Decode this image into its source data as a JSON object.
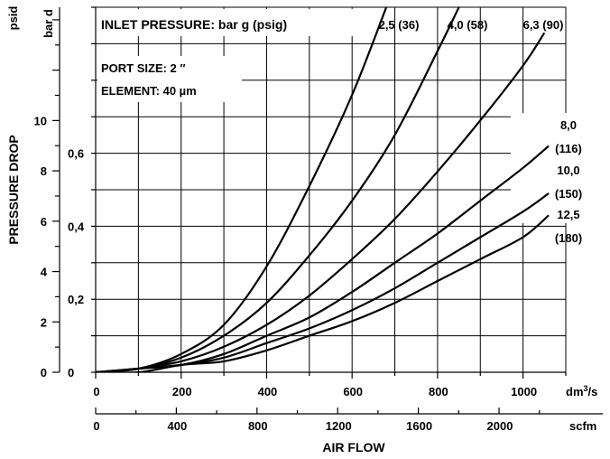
{
  "chart_data": {
    "type": "line",
    "title": "INLET PRESSURE: bar g (psig)",
    "info": {
      "port": "PORT SIZE: 2 ″",
      "element": "ELEMENT: 40 µm"
    },
    "xlabel": "AIR FLOW",
    "ylabel": "PRESSURE DROP",
    "x_primary": {
      "unit": "dm³/s",
      "unit_base": "dm",
      "unit_sup": "3",
      "unit_tail": "/s",
      "range": [
        0,
        1100
      ],
      "ticks": [
        "0",
        "200",
        "400",
        "600",
        "800",
        "1000"
      ]
    },
    "x_secondary": {
      "unit": "scfm",
      "range": [
        0,
        2331
      ],
      "ticks": [
        "0",
        "400",
        "800",
        "1200",
        "1600",
        "2000"
      ]
    },
    "y_psid": {
      "unit": "psid",
      "range": [
        0,
        14.5
      ],
      "ticks": [
        "0",
        "2",
        "4",
        "6",
        "8",
        "10"
      ]
    },
    "y_bar": {
      "unit": "bar d",
      "range": [
        0,
        1.0
      ],
      "ticks": [
        "0",
        "0,2",
        "0,4",
        "0,6"
      ]
    },
    "grid": true,
    "series": [
      {
        "label": "2,5 (36)",
        "x": [
          0,
          100,
          200,
          300,
          400,
          500,
          600,
          680
        ],
        "y": [
          0,
          0.01,
          0.05,
          0.13,
          0.29,
          0.51,
          0.76,
          1.0
        ]
      },
      {
        "label": "4,0 (58)",
        "x": [
          0,
          100,
          200,
          300,
          400,
          500,
          600,
          700,
          800,
          850
        ],
        "y": [
          0,
          0.01,
          0.04,
          0.1,
          0.19,
          0.32,
          0.47,
          0.65,
          0.88,
          1.0
        ]
      },
      {
        "label": "6,3 (90)",
        "x": [
          0,
          100,
          200,
          300,
          400,
          500,
          600,
          700,
          800,
          900,
          1000,
          1050
        ],
        "y": [
          0,
          0.01,
          0.03,
          0.07,
          0.13,
          0.21,
          0.31,
          0.42,
          0.55,
          0.69,
          0.84,
          0.93
        ]
      },
      {
        "label": "8,0 (116)",
        "x": [
          0,
          100,
          200,
          300,
          400,
          500,
          600,
          700,
          800,
          900,
          1000,
          1060
        ],
        "y": [
          0,
          0.01,
          0.02,
          0.05,
          0.1,
          0.15,
          0.22,
          0.3,
          0.38,
          0.47,
          0.56,
          0.62
        ]
      },
      {
        "label": "10,0 (150)",
        "x": [
          0,
          100,
          200,
          300,
          400,
          500,
          600,
          700,
          800,
          900,
          1000,
          1060
        ],
        "y": [
          0,
          0.01,
          0.02,
          0.04,
          0.08,
          0.12,
          0.17,
          0.23,
          0.3,
          0.37,
          0.44,
          0.49
        ]
      },
      {
        "label": "12,5 (180)",
        "x": [
          0,
          100,
          200,
          300,
          400,
          500,
          600,
          700,
          800,
          900,
          1000,
          1060
        ],
        "y": [
          0,
          0.0,
          0.02,
          0.03,
          0.06,
          0.1,
          0.14,
          0.19,
          0.25,
          0.31,
          0.37,
          0.43
        ]
      }
    ]
  }
}
